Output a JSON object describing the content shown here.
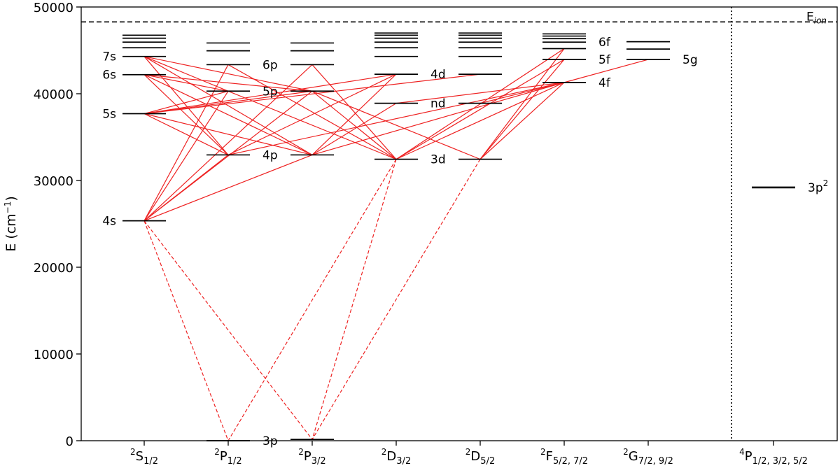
{
  "chart_data": {
    "type": "energy-level-diagram",
    "ylabel": "E (cm",
    "ylabel_sup": "−1",
    "ylabel_close": ")",
    "ylim": [
      0,
      50000
    ],
    "yticks": [
      0,
      10000,
      20000,
      30000,
      40000,
      50000
    ],
    "ionization": {
      "label": "E",
      "label_sub": "ion",
      "energy": 48280
    },
    "columns": [
      {
        "key": "S",
        "base": "2S",
        "sub": "1/2"
      },
      {
        "key": "P1",
        "base": "2P",
        "sub": "1/2"
      },
      {
        "key": "P3",
        "base": "2P",
        "sub": "3/2"
      },
      {
        "key": "D3",
        "base": "2D",
        "sub": "3/2"
      },
      {
        "key": "D5",
        "base": "2D",
        "sub": "5/2"
      },
      {
        "key": "F",
        "base": "2F",
        "sub": "5/2, 7/2"
      },
      {
        "key": "G",
        "base": "2G",
        "sub": "7/2, 9/2"
      },
      {
        "key": "Q",
        "base": "4P",
        "sub": "1/2, 3/2, 5/2"
      }
    ],
    "levels": {
      "S": [
        25350,
        37700,
        42200,
        44300,
        45300,
        45950,
        46400,
        46750
      ],
      "P1": [
        0,
        32950,
        40300,
        43350,
        44950,
        45850
      ],
      "P3": [
        150,
        32950,
        40300,
        43350,
        44950,
        45850
      ],
      "D3": [
        32450,
        38900,
        42250,
        44300,
        45300,
        45950,
        46400,
        46750,
        47000
      ],
      "D5": [
        32450,
        38900,
        42250,
        44300,
        45300,
        45950,
        46400,
        46750,
        47000
      ],
      "F": [
        41300,
        43950,
        45200,
        45950,
        46350,
        46650,
        46900
      ],
      "G": [
        43950,
        45150,
        46000
      ],
      "Q": [
        29200
      ]
    },
    "level_labels": [
      {
        "text": "7s",
        "col": "S",
        "side": "left",
        "energy": 44300
      },
      {
        "text": "6s",
        "col": "S",
        "side": "left",
        "energy": 42200
      },
      {
        "text": "5s",
        "col": "S",
        "side": "left",
        "energy": 37700
      },
      {
        "text": "4s",
        "col": "S",
        "side": "left",
        "energy": 25350
      },
      {
        "text": "6p",
        "col": "P1",
        "side": "right",
        "energy": 43350
      },
      {
        "text": "5p",
        "col": "P1",
        "side": "right",
        "energy": 40300
      },
      {
        "text": "4p",
        "col": "P1",
        "side": "right",
        "energy": 32950
      },
      {
        "text": "3p",
        "col": "P1",
        "side": "right",
        "energy": 0
      },
      {
        "text": "4d",
        "col": "D3",
        "side": "right",
        "energy": 42250
      },
      {
        "text": "nd",
        "col": "D3",
        "side": "right",
        "energy": 38900
      },
      {
        "text": "3d",
        "col": "D3",
        "side": "right",
        "energy": 32450
      },
      {
        "text": "6f",
        "col": "F",
        "side": "right",
        "energy": 45950
      },
      {
        "text": "5f",
        "col": "F",
        "side": "right",
        "energy": 43950
      },
      {
        "text": "4f",
        "col": "F",
        "side": "right",
        "energy": 41300
      },
      {
        "text": "5g",
        "col": "G",
        "side": "right",
        "energy": 43950
      },
      {
        "text": "3p",
        "col": "Q",
        "side": "right",
        "energy": 29200,
        "sup": "2"
      }
    ],
    "transitions_solid": [
      [
        "S",
        25350,
        "P1",
        32950
      ],
      [
        "S",
        25350,
        "P1",
        40300
      ],
      [
        "S",
        25350,
        "P1",
        43350
      ],
      [
        "S",
        25350,
        "P3",
        32950
      ],
      [
        "S",
        25350,
        "P3",
        40300
      ],
      [
        "S",
        25350,
        "P3",
        43350
      ],
      [
        "S",
        37700,
        "P1",
        32950
      ],
      [
        "S",
        37700,
        "P3",
        32950
      ],
      [
        "S",
        37700,
        "P1",
        40300
      ],
      [
        "S",
        37700,
        "P3",
        40300
      ],
      [
        "S",
        42200,
        "P1",
        32950
      ],
      [
        "S",
        42200,
        "P3",
        32950
      ],
      [
        "S",
        42200,
        "P1",
        40300
      ],
      [
        "S",
        42200,
        "P3",
        40300
      ],
      [
        "S",
        44300,
        "P1",
        32950
      ],
      [
        "S",
        44300,
        "P3",
        32950
      ],
      [
        "S",
        44300,
        "P1",
        40300
      ],
      [
        "S",
        44300,
        "P3",
        40300
      ],
      [
        "P1",
        32950,
        "D3",
        42250
      ],
      [
        "P1",
        40300,
        "D3",
        32450
      ],
      [
        "P1",
        43350,
        "D3",
        32450
      ],
      [
        "P3",
        32950,
        "D3",
        38900
      ],
      [
        "P3",
        32950,
        "D3",
        42250
      ],
      [
        "P3",
        40300,
        "D3",
        32450
      ],
      [
        "P3",
        40300,
        "D5",
        32450
      ],
      [
        "P3",
        43350,
        "D3",
        32450
      ],
      [
        "S",
        37700,
        "D3",
        42250
      ],
      [
        "S",
        37700,
        "D5",
        42250
      ],
      [
        "D3",
        32450,
        "F",
        41300
      ],
      [
        "D3",
        32450,
        "F",
        43950
      ],
      [
        "D3",
        32450,
        "F",
        45200
      ],
      [
        "D5",
        32450,
        "F",
        41300
      ],
      [
        "D5",
        32450,
        "F",
        43950
      ],
      [
        "D5",
        32450,
        "F",
        45200
      ],
      [
        "P1",
        32950,
        "F",
        41300
      ],
      [
        "P3",
        32950,
        "F",
        41300
      ],
      [
        "D3",
        38900,
        "F",
        41300
      ],
      [
        "D5",
        38900,
        "F",
        41300
      ],
      [
        "F",
        41300,
        "G",
        43950
      ]
    ],
    "transitions_dashed": [
      [
        "S",
        25350,
        "P1",
        0
      ],
      [
        "S",
        25350,
        "P3",
        150
      ],
      [
        "D3",
        32450,
        "P1",
        0
      ],
      [
        "D3",
        32450,
        "P3",
        150
      ],
      [
        "D5",
        32450,
        "P3",
        150
      ]
    ],
    "colors": {
      "transition": "#ee2222",
      "level": "#000000"
    }
  }
}
